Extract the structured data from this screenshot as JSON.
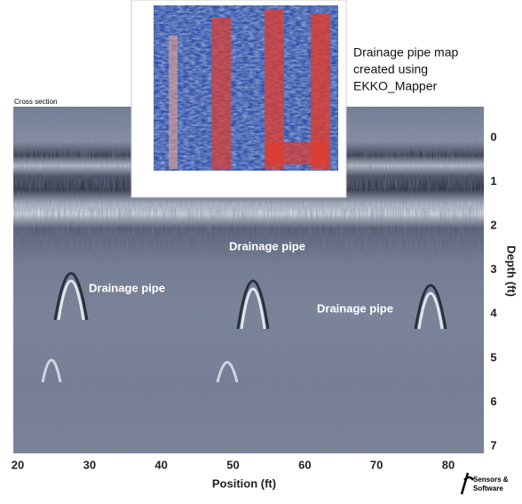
{
  "section_label": "Cross section",
  "inset": {
    "caption_lines": [
      "Drainage pipe map",
      "created using",
      "EKKO_Mapper"
    ]
  },
  "annotations": [
    {
      "text": "Drainage pipe"
    },
    {
      "text": "Drainage pipe"
    },
    {
      "text": "Drainage pipe"
    }
  ],
  "x_axis": {
    "label": "Position (ft)",
    "ticks": [
      20,
      30,
      40,
      50,
      60,
      70,
      80
    ]
  },
  "y_axis": {
    "label": "Depth (ft)",
    "ticks": [
      0,
      1,
      2,
      3,
      4,
      5,
      6,
      7
    ]
  },
  "logo": {
    "lines": [
      "Sensors &",
      "Software"
    ]
  }
}
